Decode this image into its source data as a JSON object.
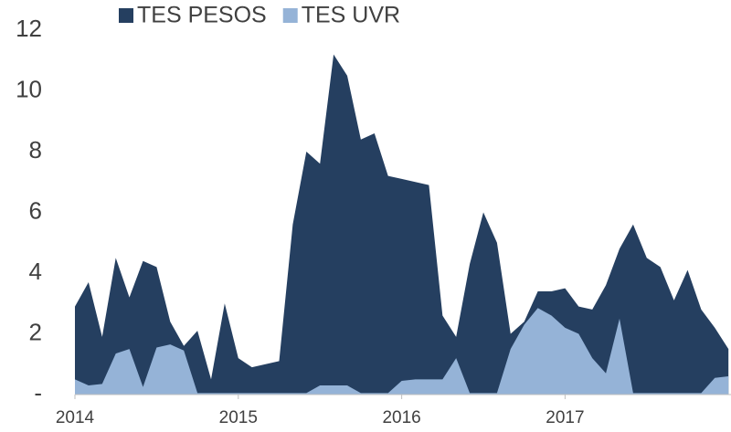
{
  "chart_data": {
    "type": "area",
    "categories": [
      "2014",
      null,
      null,
      null,
      null,
      null,
      null,
      null,
      null,
      null,
      null,
      null,
      "2015",
      null,
      null,
      null,
      null,
      null,
      null,
      null,
      null,
      null,
      null,
      null,
      "2016",
      null,
      null,
      null,
      null,
      null,
      null,
      null,
      null,
      null,
      null,
      null,
      "2017",
      null,
      null,
      null,
      null,
      null,
      null,
      null,
      null,
      null,
      null,
      null,
      null
    ],
    "series": [
      {
        "name": "TES PESOS",
        "color": "#253f60",
        "values": [
          2.9,
          3.7,
          1.9,
          4.5,
          3.2,
          4.4,
          4.2,
          2.4,
          1.6,
          2.1,
          0.5,
          3.0,
          1.2,
          0.9,
          1.0,
          1.1,
          5.6,
          8.0,
          7.6,
          11.2,
          10.5,
          8.4,
          8.6,
          7.2,
          7.1,
          7.0,
          6.9,
          2.6,
          1.9,
          4.3,
          6.0,
          5.0,
          2.0,
          2.4,
          3.4,
          3.4,
          3.5,
          2.9,
          2.8,
          3.6,
          4.8,
          5.6,
          4.5,
          4.2,
          3.1,
          4.1,
          2.8,
          2.2,
          1.5
        ]
      },
      {
        "name": "TES UVR",
        "color": "#95b3d7",
        "values": [
          0.5,
          0.3,
          0.35,
          1.35,
          1.5,
          0.25,
          1.55,
          1.65,
          1.45,
          0.05,
          0.05,
          0.05,
          0.05,
          0.05,
          0.05,
          0.05,
          0.05,
          0.05,
          0.3,
          0.3,
          0.3,
          0.05,
          0.05,
          0.05,
          0.45,
          0.5,
          0.5,
          0.5,
          1.2,
          0.05,
          0.05,
          0.05,
          1.5,
          2.3,
          2.85,
          2.6,
          2.2,
          2.0,
          1.2,
          0.7,
          2.5,
          0.05,
          0.05,
          0.05,
          0.05,
          0.05,
          0.05,
          0.55,
          0.6
        ]
      }
    ],
    "ylim": [
      0,
      12
    ],
    "yticks": [
      {
        "value": 0,
        "label": "-"
      },
      2,
      4,
      6,
      8,
      10,
      12
    ],
    "legend": "top"
  }
}
